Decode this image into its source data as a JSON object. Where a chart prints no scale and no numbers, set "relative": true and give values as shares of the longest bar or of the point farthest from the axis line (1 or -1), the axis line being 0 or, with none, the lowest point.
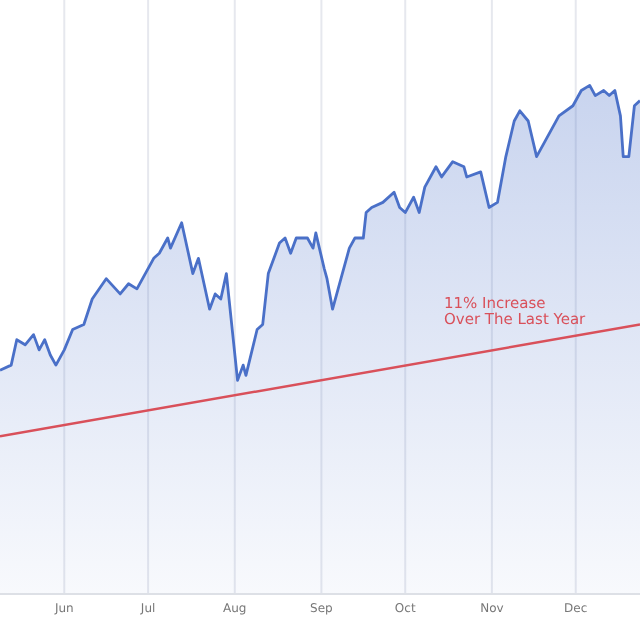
{
  "chart_data": {
    "type": "area",
    "relative": true,
    "grid": "x",
    "annotations": [
      "11% Increase\nOver The Last Year"
    ],
    "xlim": [
      "--05-09",
      "--12-24"
    ],
    "xticks": [
      {
        "value": "--06-01",
        "label": "Jun"
      },
      {
        "value": "--07-01",
        "label": "Jul"
      },
      {
        "value": "--08-01",
        "label": "Aug"
      },
      {
        "value": "--09-01",
        "label": "Sep"
      },
      {
        "value": "--10-01",
        "label": "Oct"
      },
      {
        "value": "--11-01",
        "label": "Nov"
      },
      {
        "value": "--12-01",
        "label": "Dec"
      }
    ],
    "series": [
      {
        "color": "#4a70c8",
        "x": [
          "--05-09",
          "--05-13",
          "--05-15",
          "--05-18",
          "--05-21",
          "--05-23",
          "--05-25",
          "--05-27",
          "--05-29",
          "--06-01",
          "--06-04",
          "--06-08",
          "--06-11",
          "--06-16",
          "--06-21",
          "--06-24",
          "--06-27",
          "--07-03",
          "--07-05",
          "--07-08",
          "--07-09",
          "--07-13",
          "--07-17",
          "--07-19",
          "--07-23",
          "--07-25",
          "--07-27",
          "--07-29",
          "--08-02",
          "--08-04",
          "--08-05",
          "--08-09",
          "--08-11",
          "--08-13",
          "--08-17",
          "--08-19",
          "--08-21",
          "--08-23",
          "--08-27",
          "--08-29",
          "--08-30",
          "--09-02",
          "--09-03",
          "--09-05",
          "--09-08",
          "--09-11",
          "--09-13",
          "--09-16",
          "--09-17",
          "--09-19",
          "--09-23",
          "--09-27",
          "--09-29",
          "--10-01",
          "--10-04",
          "--10-06",
          "--10-08",
          "--10-12",
          "--10-14",
          "--10-18",
          "--10-22",
          "--10-23",
          "--10-28",
          "--10-31",
          "--11-03",
          "--11-06",
          "--11-09",
          "--11-11",
          "--11-14",
          "--11-17",
          "--11-20",
          "--11-25",
          "--11-30",
          "--12-03",
          "--12-06",
          "--12-08",
          "--12-11",
          "--12-13",
          "--12-15",
          "--12-17",
          "--12-18",
          "--12-20",
          "--12-22",
          "--12-24"
        ],
        "values": [
          0.44,
          0.45,
          0.5,
          0.49,
          0.51,
          0.48,
          0.5,
          0.47,
          0.45,
          0.48,
          0.52,
          0.53,
          0.58,
          0.62,
          0.59,
          0.61,
          0.6,
          0.66,
          0.67,
          0.7,
          0.68,
          0.73,
          0.63,
          0.66,
          0.56,
          0.59,
          0.58,
          0.63,
          0.42,
          0.45,
          0.43,
          0.52,
          0.53,
          0.63,
          0.69,
          0.7,
          0.67,
          0.7,
          0.7,
          0.68,
          0.71,
          0.64,
          0.62,
          0.56,
          0.62,
          0.68,
          0.7,
          0.7,
          0.75,
          0.76,
          0.77,
          0.79,
          0.76,
          0.75,
          0.78,
          0.75,
          0.8,
          0.84,
          0.82,
          0.85,
          0.84,
          0.82,
          0.83,
          0.76,
          0.77,
          0.86,
          0.93,
          0.95,
          0.93,
          0.86,
          0.89,
          0.94,
          0.96,
          0.99,
          1,
          0.98,
          0.99,
          0.98,
          0.99,
          0.94,
          0.86,
          0.86,
          0.96,
          0.97
        ]
      },
      {
        "type": "line",
        "color": "#d9505a",
        "x": [
          "--05-09",
          "--12-24"
        ],
        "values": [
          0.31,
          0.53
        ]
      }
    ]
  }
}
